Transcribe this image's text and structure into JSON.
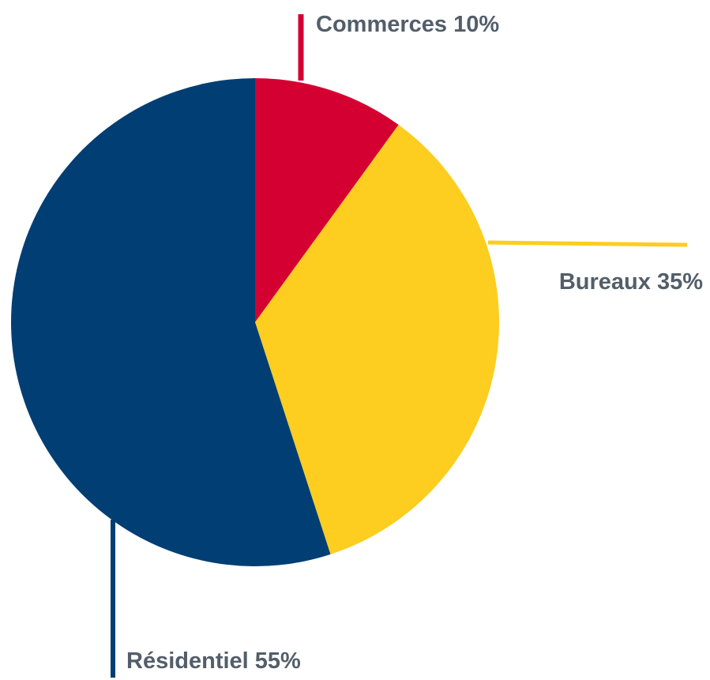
{
  "chart_data": {
    "type": "pie",
    "categories": [
      "Commerces",
      "Bureaux",
      "Résidentiel"
    ],
    "values": [
      10,
      35,
      55
    ],
    "value_labels": [
      "10%",
      "35%",
      "55%"
    ],
    "colors": [
      "#d50032",
      "#fdcd1f",
      "#003e74"
    ]
  }
}
